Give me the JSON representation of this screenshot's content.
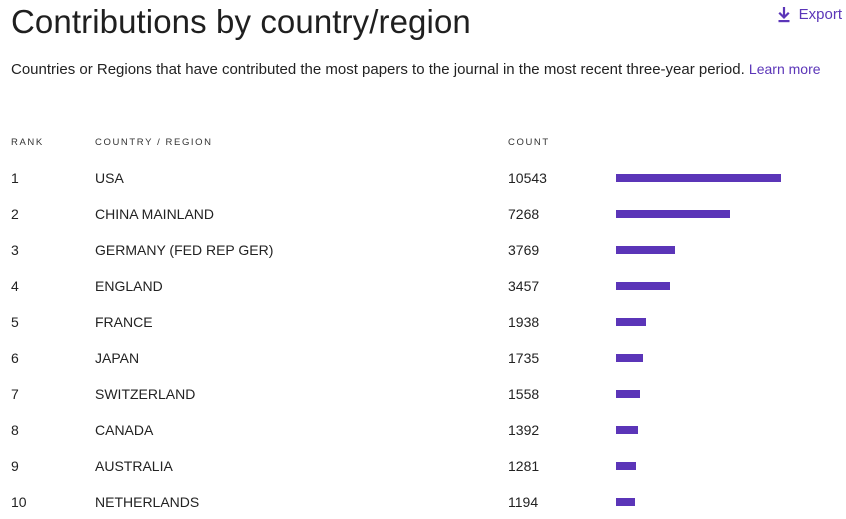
{
  "title": "Contributions by country/region",
  "export": {
    "label": "Export",
    "icon": "download-icon"
  },
  "description": {
    "text": "Countries or Regions that have contributed the most papers to the journal in the most recent three-year period.",
    "link_label": "Learn more"
  },
  "columns": {
    "rank": "RANK",
    "country": "COUNTRY / REGION",
    "count": "COUNT"
  },
  "colors": {
    "accent": "#5b35b8",
    "bar": "#5b35b8"
  },
  "chart_data": {
    "type": "bar",
    "orientation": "horizontal",
    "categories": [
      "USA",
      "CHINA MAINLAND",
      "GERMANY (FED REP GER)",
      "ENGLAND",
      "FRANCE",
      "JAPAN",
      "SWITZERLAND",
      "CANADA",
      "AUSTRALIA",
      "NETHERLANDS"
    ],
    "ranks": [
      "1",
      "2",
      "3",
      "4",
      "5",
      "6",
      "7",
      "8",
      "9",
      "10"
    ],
    "values": [
      10543,
      7268,
      3769,
      3457,
      1938,
      1735,
      1558,
      1392,
      1281,
      1194
    ],
    "xlim": [
      0,
      10543
    ],
    "grid": false,
    "legend": "none"
  }
}
